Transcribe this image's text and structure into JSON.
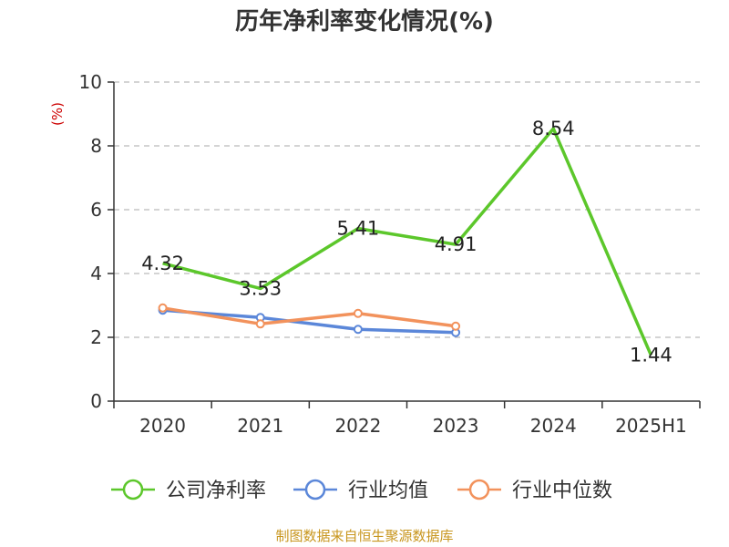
{
  "chart_data": {
    "type": "line",
    "title": "历年净利率变化情况(%)",
    "ylabel": "(%)",
    "ylim": [
      0,
      10
    ],
    "yticks": [
      0,
      2,
      4,
      6,
      8,
      10
    ],
    "categories": [
      "2020",
      "2021",
      "2022",
      "2023",
      "2024",
      "2025H1"
    ],
    "grid": true,
    "legend_position": "bottom",
    "series": [
      {
        "name": "公司净利率",
        "color": "#5cc72b",
        "values": [
          4.32,
          3.53,
          5.41,
          4.91,
          8.54,
          1.44
        ],
        "labels": [
          "4.32",
          "3.53",
          "5.41",
          "4.91",
          "8.54",
          "1.44"
        ]
      },
      {
        "name": "行业均值",
        "color": "#5b87d9",
        "values": [
          2.85,
          2.62,
          2.25,
          2.15,
          null,
          null
        ]
      },
      {
        "name": "行业中位数",
        "color": "#f2925c",
        "values": [
          2.92,
          2.42,
          2.75,
          2.35,
          null,
          null
        ]
      }
    ],
    "source": "制图数据来自恒生聚源数据库",
    "colors": {
      "axis": "#333333",
      "grid": "#bbbbbb",
      "unit": "#cc0000",
      "source": "#c8961e"
    }
  }
}
